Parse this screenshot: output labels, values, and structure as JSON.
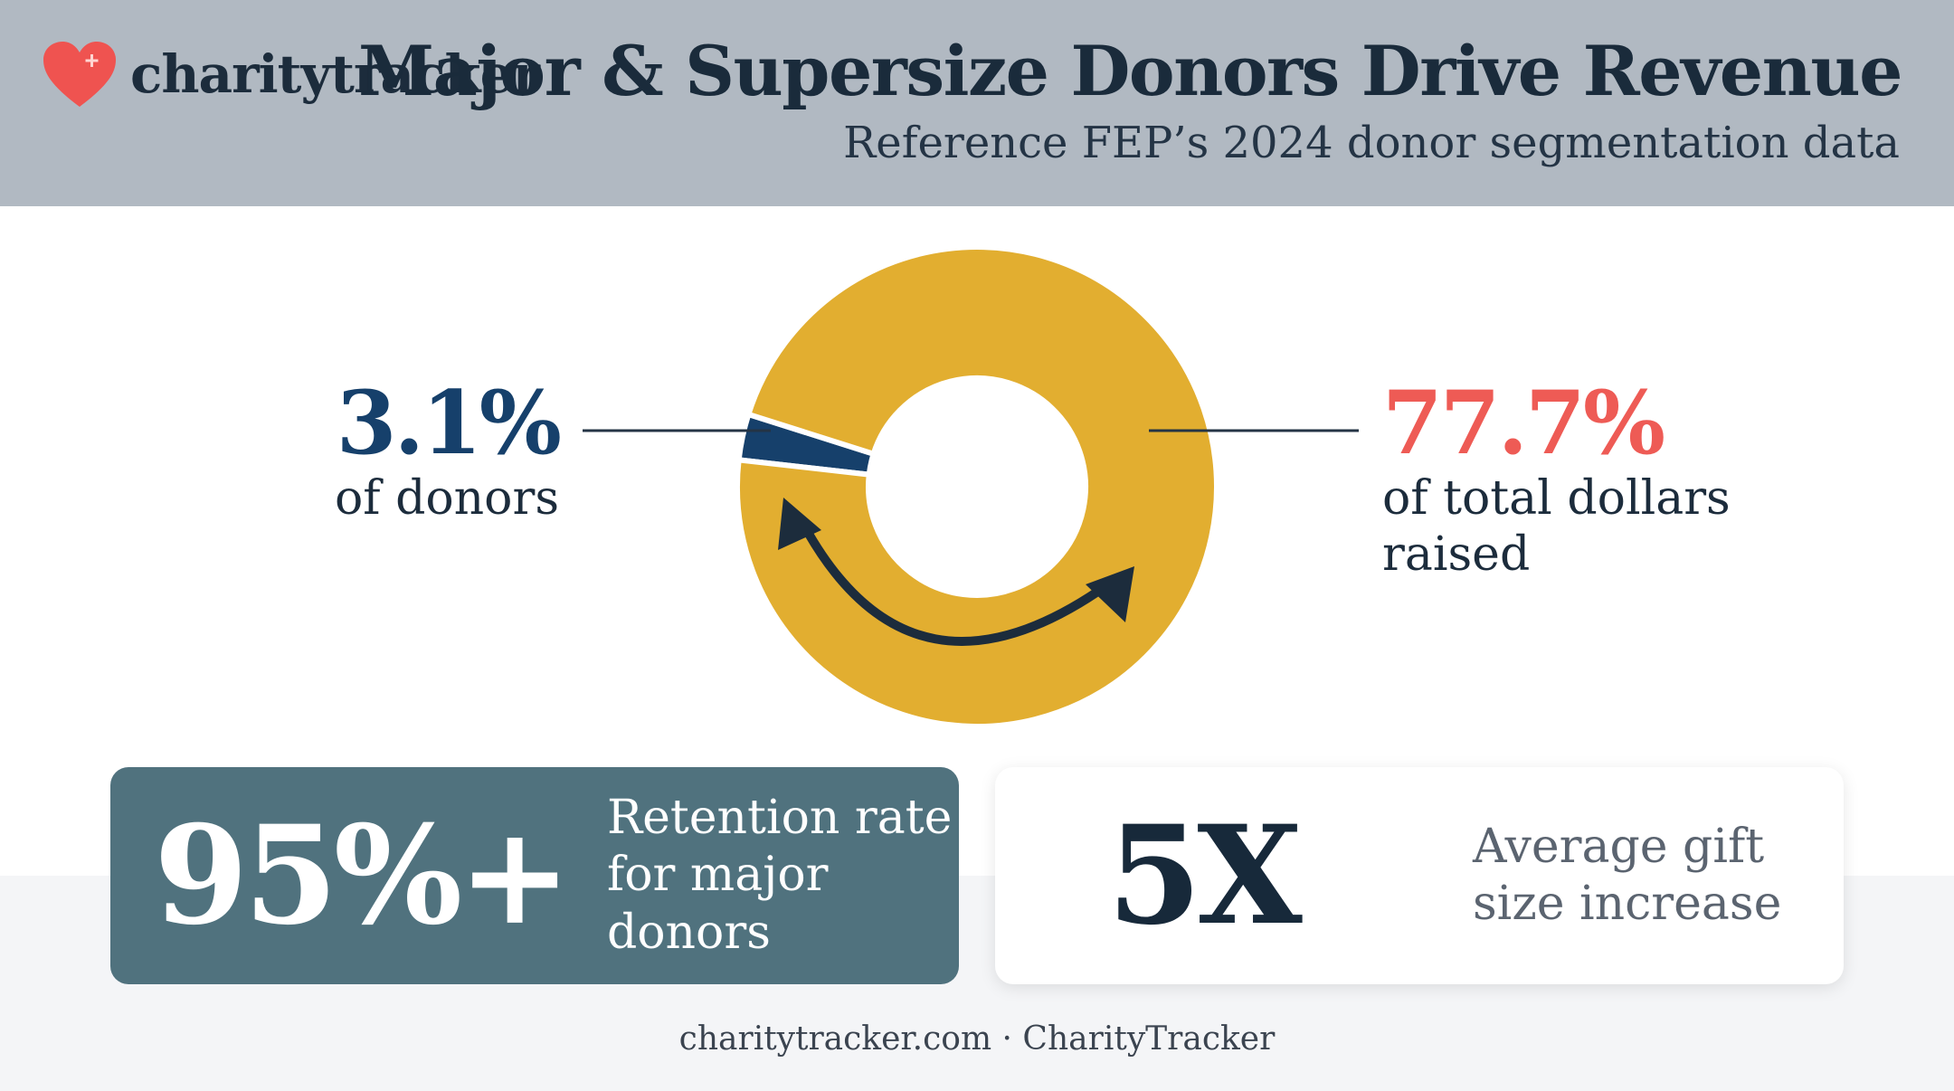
{
  "brand": {
    "name": "charitytracker",
    "logo_icon": "heart-plus-icon",
    "logo_color": "#ef5350"
  },
  "header": {
    "title": "Major & Supersize Donors Drive Revenue",
    "subtitle": "Reference FEP’s 2024 donor segmentation data"
  },
  "chart_data": {
    "type": "pie",
    "variant": "donut",
    "slices": [
      {
        "value": 3.1,
        "color": "#16406b"
      },
      {
        "value": 96.9,
        "color": "#e2ae30"
      }
    ],
    "callouts": [
      {
        "value": "3.1%",
        "label": "of donors",
        "color": "#16406b"
      },
      {
        "value": "77.7%",
        "label": "of total dollars raised",
        "color": "#ee5b55"
      }
    ]
  },
  "cards": [
    {
      "metric": "95%+",
      "label": "Retention rate for major donors",
      "background": "#50727e"
    },
    {
      "metric": "5X",
      "label": "Average gift size increase",
      "background": "#ffffff"
    }
  ],
  "footer": {
    "text": "charitytracker.com · CharityTracker"
  }
}
